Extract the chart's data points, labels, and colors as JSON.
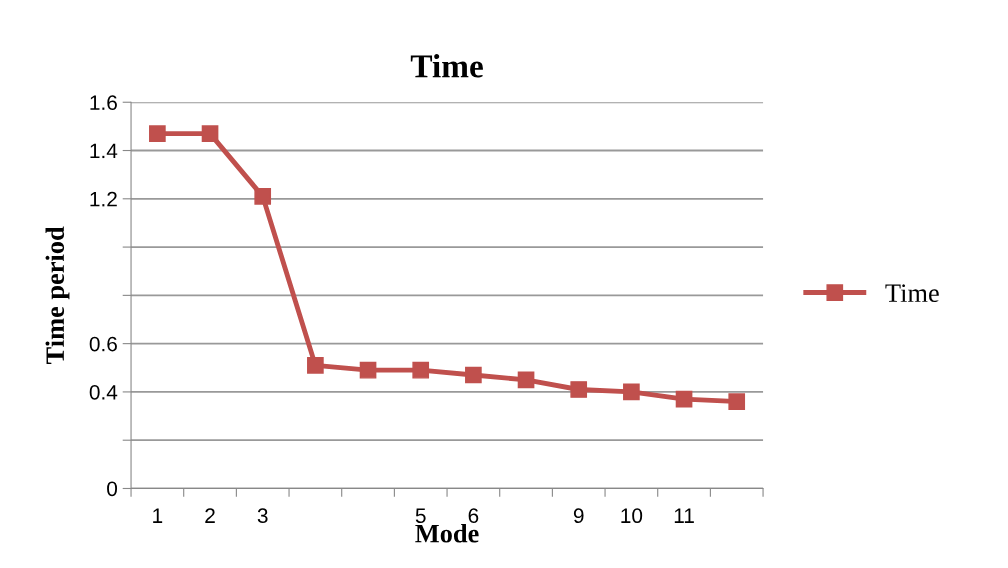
{
  "chart_data": {
    "type": "line",
    "title": "Time",
    "xlabel": "Mode",
    "ylabel": "Time period",
    "categories": [
      "1",
      "2",
      "3",
      null,
      null,
      "5",
      "6",
      null,
      "9",
      "10",
      "11",
      null
    ],
    "series": [
      {
        "name": "Time",
        "color": "#c0504d",
        "values": [
          1.47,
          1.47,
          1.21,
          0.51,
          0.49,
          0.49,
          0.47,
          0.45,
          0.41,
          0.4,
          0.37,
          0.36
        ]
      }
    ],
    "ylim": [
      0,
      1.6
    ],
    "yticks": [
      0,
      {
        "value": 0.2,
        "label": null
      },
      0.4,
      0.6,
      {
        "value": 0.8,
        "label": null
      },
      {
        "value": 1.0,
        "label": null
      },
      1.2,
      1.4,
      1.6
    ],
    "grid": "y",
    "legend": "right",
    "marker": "square",
    "line_style": "solid"
  }
}
